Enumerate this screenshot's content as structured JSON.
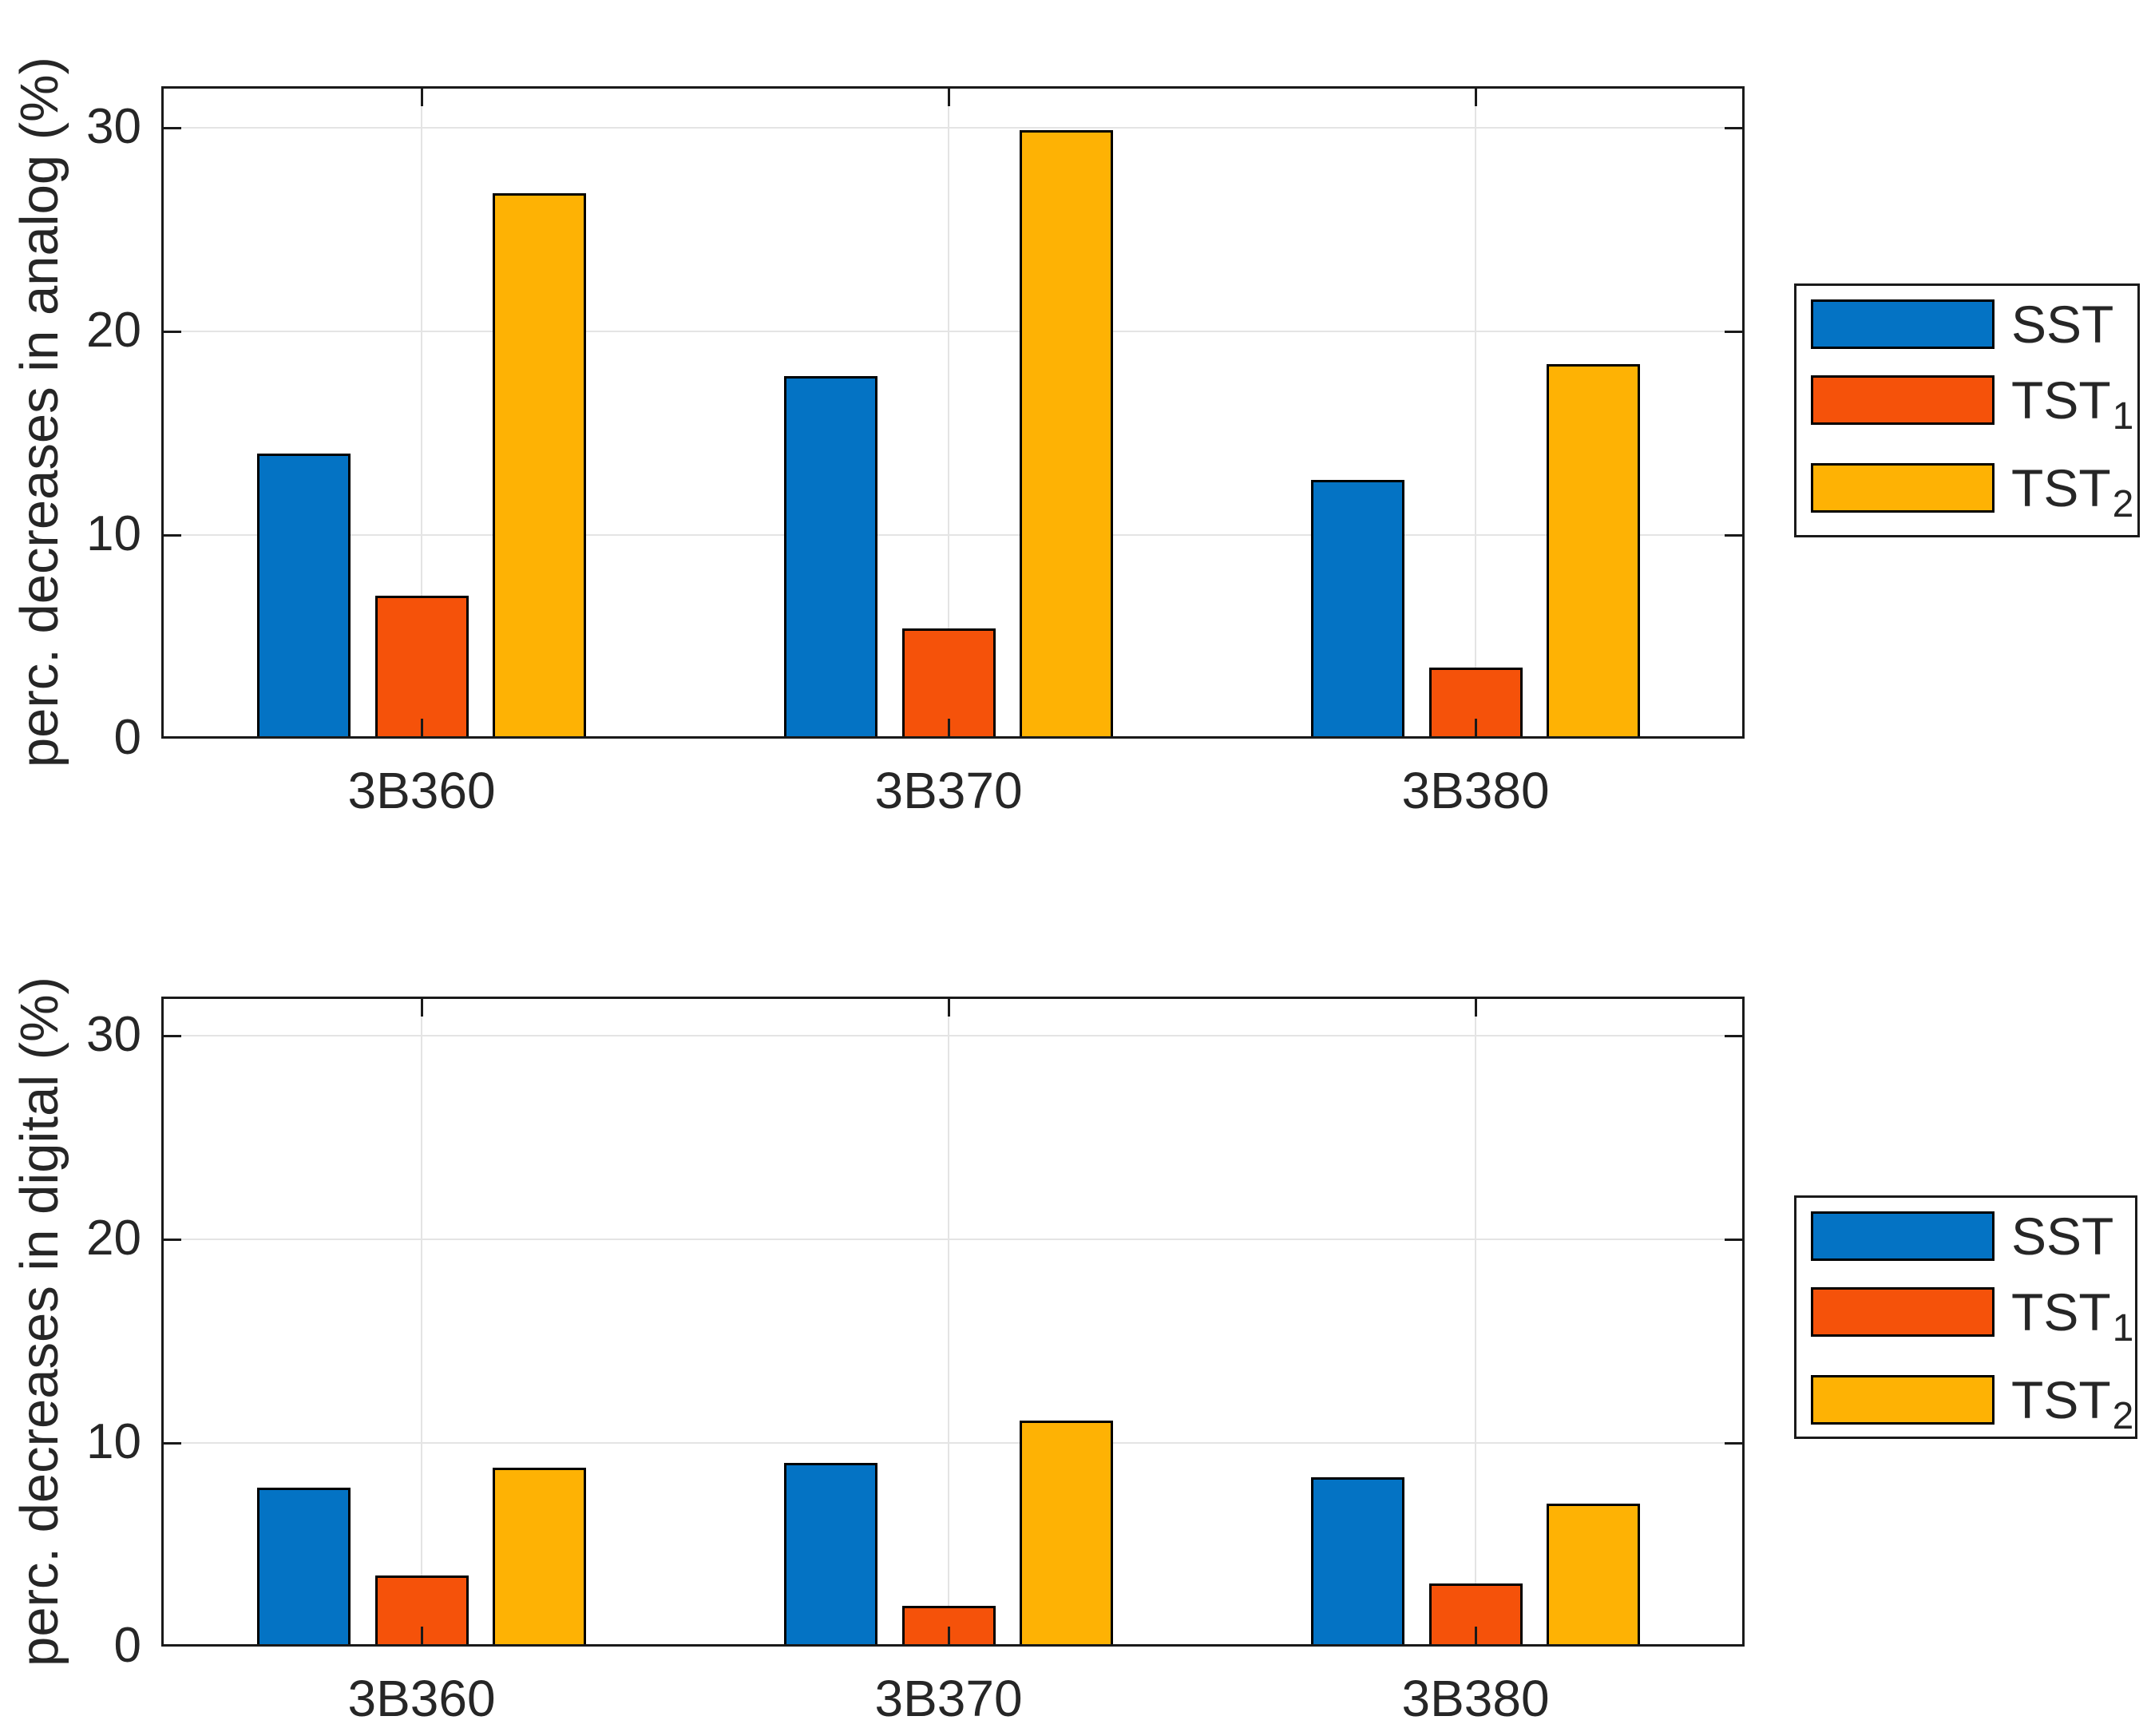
{
  "colors": {
    "sst": "#0473C4",
    "tst1": "#F5520A",
    "tst2": "#FEB204",
    "bar_edge": "#000000",
    "axis": "#1A1A1A",
    "grid": "#E4E4E4",
    "text": "#262626",
    "background": "#FFFFFF"
  },
  "chart_data": [
    {
      "type": "bar",
      "title": "",
      "xlabel": "",
      "ylabel": "perc. decreases in analog (%)",
      "categories": [
        "3B360",
        "3B370",
        "3B380"
      ],
      "yticks": [
        0,
        10,
        20,
        30
      ],
      "ylim": [
        0,
        32.2
      ],
      "grid": "on",
      "legend_position": "right-outside",
      "series": [
        {
          "name": "SST",
          "sub": "",
          "color_key": "sst",
          "values": [
            14.0,
            17.8,
            12.7
          ]
        },
        {
          "name": "TST",
          "sub": "1",
          "color_key": "tst1",
          "values": [
            7.0,
            5.4,
            3.5
          ]
        },
        {
          "name": "TST",
          "sub": "2",
          "color_key": "tst2",
          "values": [
            26.8,
            29.9,
            18.4
          ]
        }
      ]
    },
    {
      "type": "bar",
      "title": "",
      "xlabel": "",
      "ylabel": "perc. decreases in digital (%)",
      "categories": [
        "3B360",
        "3B370",
        "3B380"
      ],
      "yticks": [
        0,
        10,
        20,
        30
      ],
      "ylim": [
        0,
        32.0
      ],
      "grid": "on",
      "legend_position": "right-outside",
      "series": [
        {
          "name": "SST",
          "sub": "",
          "color_key": "sst",
          "values": [
            7.8,
            9.0,
            8.3
          ]
        },
        {
          "name": "TST",
          "sub": "1",
          "color_key": "tst1",
          "values": [
            3.5,
            2.0,
            3.1
          ]
        },
        {
          "name": "TST",
          "sub": "2",
          "color_key": "tst2",
          "values": [
            8.8,
            11.1,
            7.0
          ]
        }
      ]
    }
  ]
}
